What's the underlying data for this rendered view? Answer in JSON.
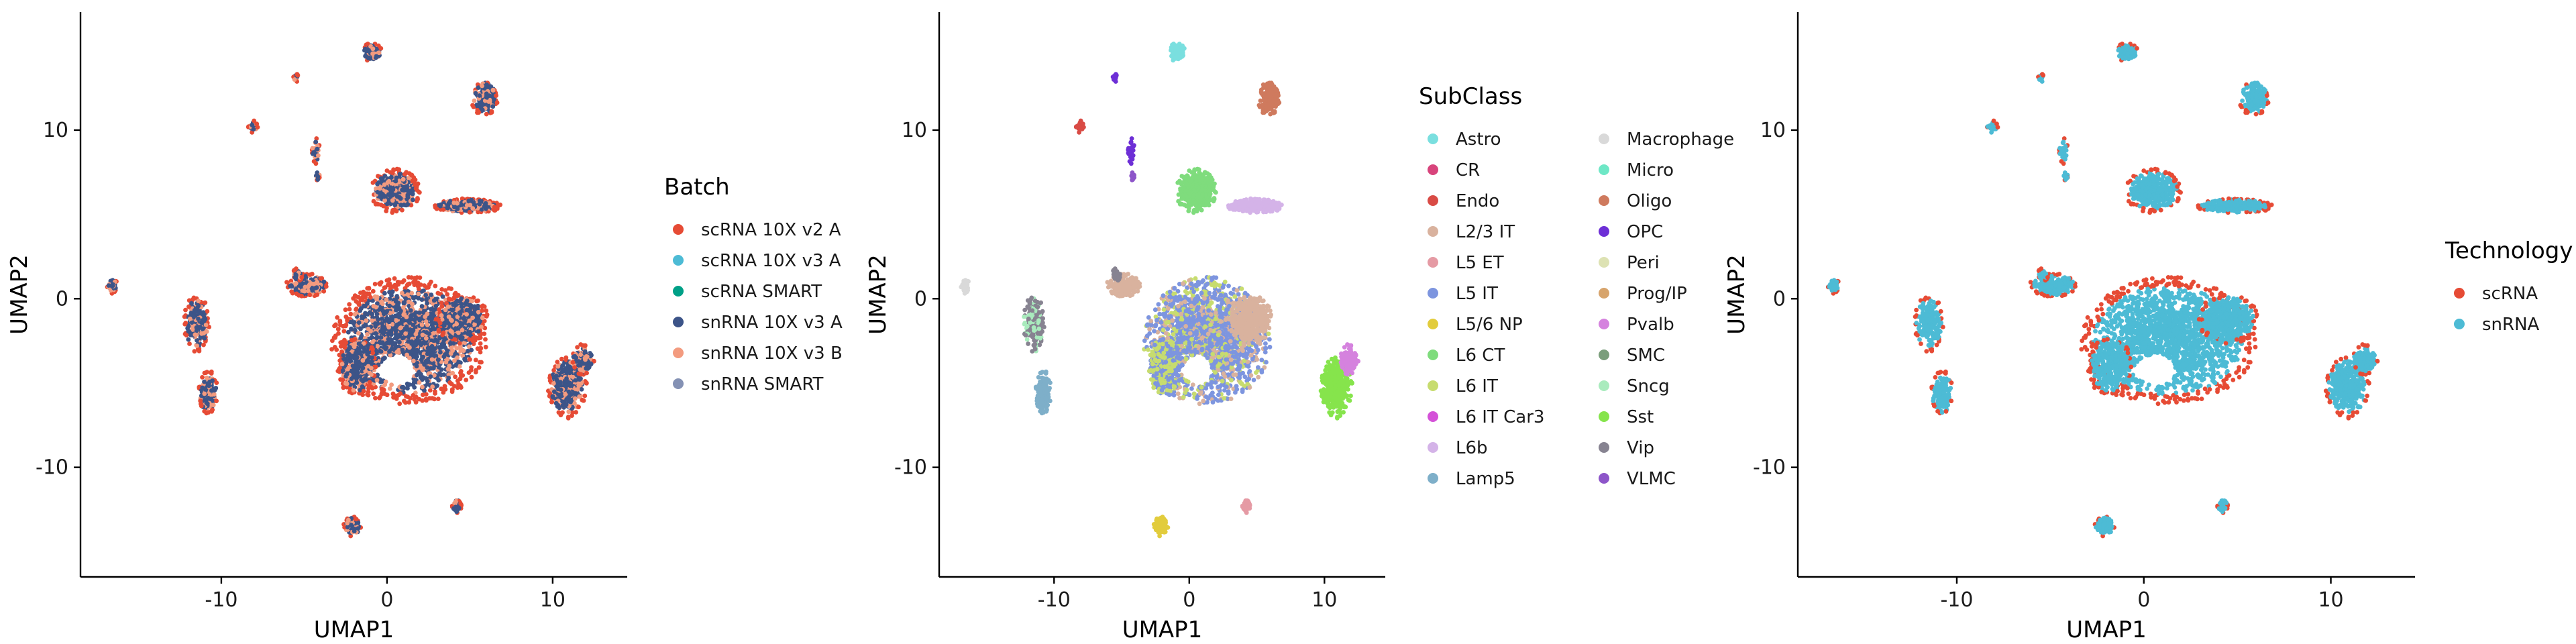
{
  "chart_data": [
    {
      "type": "scatter",
      "xlabel": "UMAP1",
      "ylabel": "UMAP2",
      "xlim": [
        -18.5,
        14.5
      ],
      "ylim": [
        -16.5,
        17
      ],
      "x_ticks": [
        -10,
        0,
        10
      ],
      "x_tick_labels": [
        "-10",
        "0",
        "10"
      ],
      "y_ticks": [
        -10,
        0,
        10
      ],
      "y_tick_labels": [
        "-10",
        "0",
        "10"
      ],
      "grid": false,
      "legend": {
        "title": "Batch",
        "position": "right",
        "items": [
          {
            "label": "scRNA 10X v2 A",
            "color": "#E64B35"
          },
          {
            "label": "scRNA 10X v3 A",
            "color": "#4DBBD5"
          },
          {
            "label": "scRNA SMART",
            "color": "#00A087"
          },
          {
            "label": "snRNA 10X v3 A",
            "color": "#3C5488"
          },
          {
            "label": "snRNA 10X v3 B",
            "color": "#F39B7F"
          },
          {
            "label": "snRNA SMART",
            "color": "#8491B4"
          }
        ]
      },
      "series": [
        {
          "name": "snRNA 10X v3 B",
          "color": "#F39B7F"
        },
        {
          "name": "snRNA 10X v3 A",
          "color": "#3C5488"
        },
        {
          "name": "scRNA 10X v2 A",
          "color": "#E64B35"
        }
      ]
    },
    {
      "type": "scatter",
      "xlabel": "UMAP1",
      "ylabel": "UMAP2",
      "xlim": [
        -18.5,
        14.5
      ],
      "ylim": [
        -16.5,
        17
      ],
      "x_ticks": [
        -10,
        0,
        10
      ],
      "x_tick_labels": [
        "-10",
        "0",
        "10"
      ],
      "y_ticks": [
        -10,
        0,
        10
      ],
      "y_tick_labels": [
        "-10",
        "0",
        "10"
      ],
      "grid": false,
      "legend": {
        "title": "SubClass",
        "position": "right",
        "columns": 2,
        "items": [
          {
            "label": "Astro",
            "color": "#7ADFDF"
          },
          {
            "label": "CR",
            "color": "#D8447C"
          },
          {
            "label": "Endo",
            "color": "#D94B45"
          },
          {
            "label": "L2/3 IT",
            "color": "#D9B29E"
          },
          {
            "label": "L5 ET",
            "color": "#E59AA4"
          },
          {
            "label": "L5 IT",
            "color": "#7D95DF"
          },
          {
            "label": "L5/6 NP",
            "color": "#E2CC3C"
          },
          {
            "label": "L6 CT",
            "color": "#7FDC7D"
          },
          {
            "label": "L6 IT",
            "color": "#C7DC6F"
          },
          {
            "label": "L6 IT Car3",
            "color": "#D451D8"
          },
          {
            "label": "L6b",
            "color": "#D4B3E8"
          },
          {
            "label": "Lamp5",
            "color": "#7EAFC9"
          },
          {
            "label": "Macrophage",
            "color": "#D9D9D9"
          },
          {
            "label": "Micro",
            "color": "#6EE7C6"
          },
          {
            "label": "Oligo",
            "color": "#CF7A5E"
          },
          {
            "label": "OPC",
            "color": "#6D2FD6"
          },
          {
            "label": "Peri",
            "color": "#DDE2B3"
          },
          {
            "label": "Prog/IP",
            "color": "#D7A46C"
          },
          {
            "label": "Pvalb",
            "color": "#D582DE"
          },
          {
            "label": "SMC",
            "color": "#7A9E7B"
          },
          {
            "label": "Sncg",
            "color": "#A9EBBD"
          },
          {
            "label": "Sst",
            "color": "#86E44C"
          },
          {
            "label": "Vip",
            "color": "#878391"
          },
          {
            "label": "VLMC",
            "color": "#8D55C9"
          }
        ]
      }
    },
    {
      "type": "scatter",
      "xlabel": "UMAP1",
      "ylabel": "UMAP2",
      "xlim": [
        -18.5,
        14.5
      ],
      "ylim": [
        -16.5,
        17
      ],
      "x_ticks": [
        -10,
        0,
        10
      ],
      "x_tick_labels": [
        "-10",
        "0",
        "10"
      ],
      "y_ticks": [
        -10,
        0,
        10
      ],
      "y_tick_labels": [
        "-10",
        "0",
        "10"
      ],
      "grid": false,
      "legend": {
        "title": "Technology",
        "position": "right",
        "items": [
          {
            "label": "scRNA",
            "color": "#E64B35"
          },
          {
            "label": "snRNA",
            "color": "#4DBBD5"
          }
        ]
      },
      "series": [
        {
          "name": "snRNA",
          "color": "#4DBBD5"
        },
        {
          "name": "scRNA",
          "color": "#E64B35"
        }
      ]
    }
  ]
}
